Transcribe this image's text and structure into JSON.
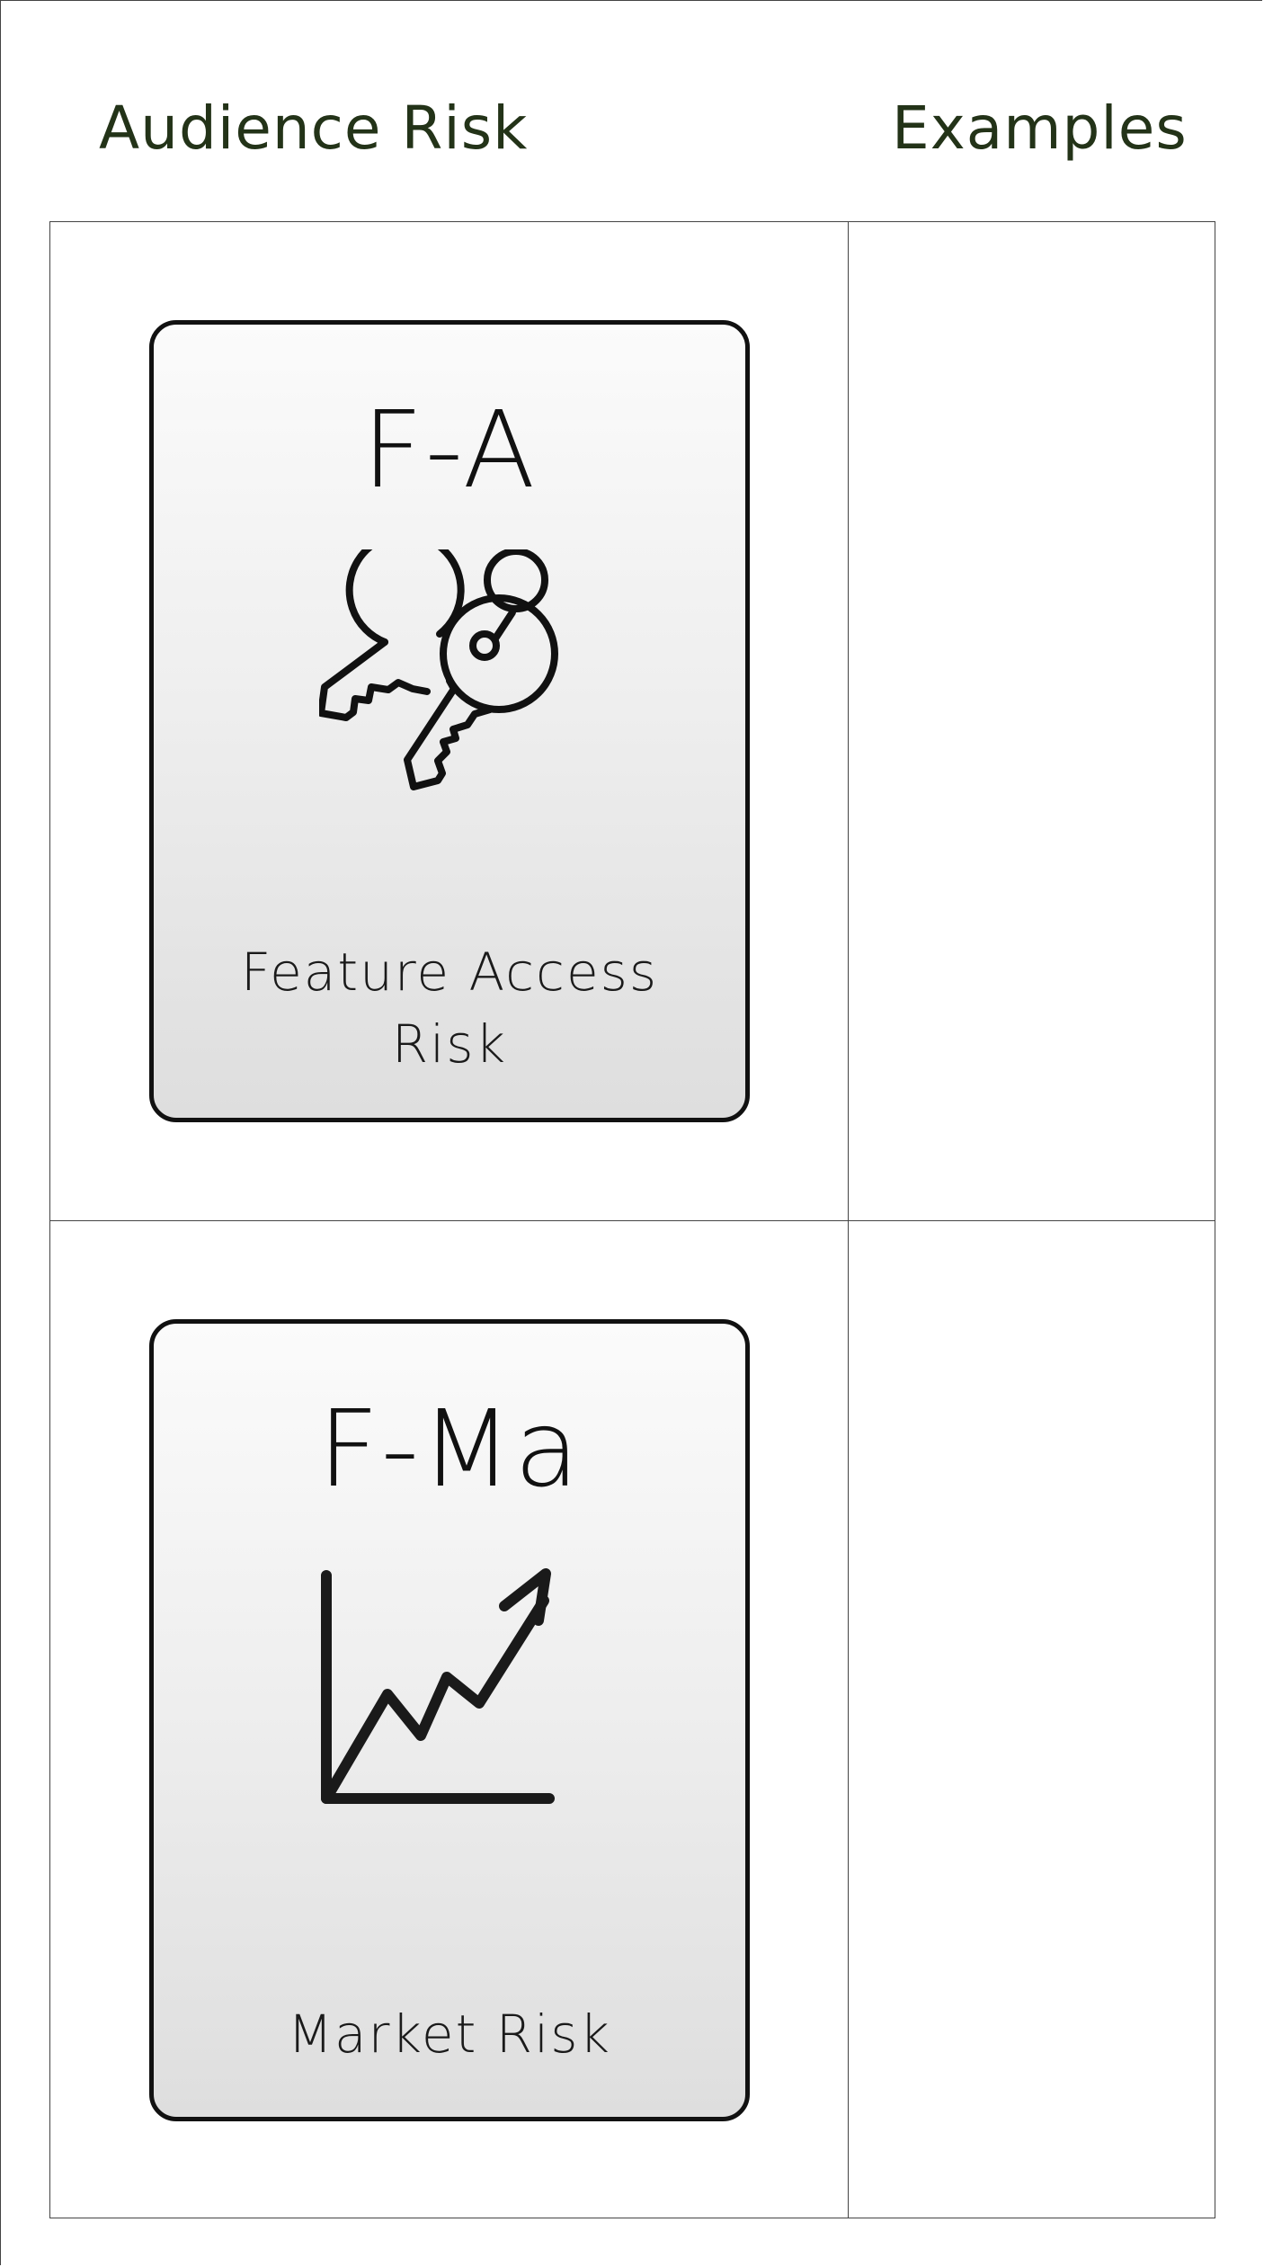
{
  "table": {
    "headers": {
      "risk": "Audience Risk",
      "examples": "Examples"
    },
    "rows": [
      {
        "card": {
          "code": "F-A",
          "icon": "keys-icon",
          "label": "Feature Access Risk"
        },
        "examples": ""
      },
      {
        "card": {
          "code": "F-Ma",
          "icon": "trending-chart-icon",
          "label": "Market Risk"
        },
        "examples": ""
      }
    ]
  },
  "colors": {
    "header_text": "#233318",
    "card_border": "#111111",
    "grid_line": "#444444"
  }
}
